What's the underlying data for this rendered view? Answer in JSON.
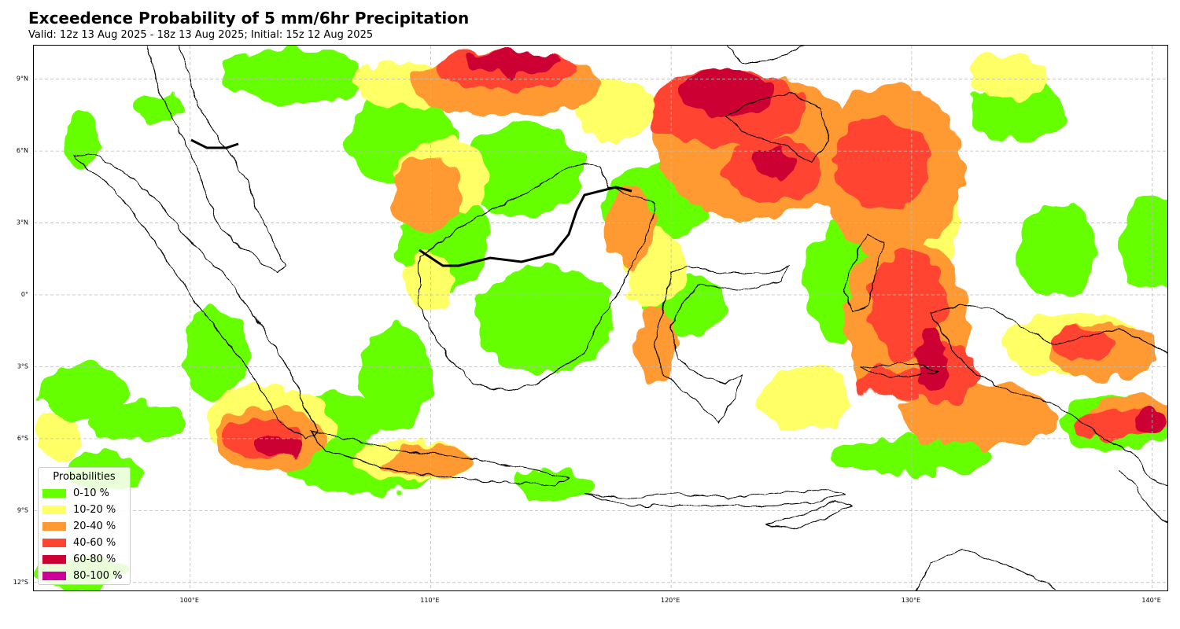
{
  "title": "Exceedence Probability of 5 mm/6hr Precipitation",
  "subtitle": "Valid: 12z 13 Aug 2025 - 18z 13 Aug 2025; Initial: 15z 12 Aug 2025",
  "map": {
    "lon_range": [
      93.5,
      140.7
    ],
    "lat_range": [
      -12.4,
      10.4
    ],
    "lat_ticks": [
      {
        "value": 9,
        "label": "9°N"
      },
      {
        "value": 6,
        "label": "6°N"
      },
      {
        "value": 3,
        "label": "3°N"
      },
      {
        "value": 0,
        "label": "0°"
      },
      {
        "value": -3,
        "label": "3°S"
      },
      {
        "value": -6,
        "label": "6°S"
      },
      {
        "value": -9,
        "label": "9°S"
      },
      {
        "value": -12,
        "label": "12°S"
      }
    ],
    "lon_ticks": [
      {
        "value": 100,
        "label": "100°E"
      },
      {
        "value": 110,
        "label": "110°E"
      },
      {
        "value": 120,
        "label": "120°E"
      },
      {
        "value": 130,
        "label": "130°E"
      },
      {
        "value": 140,
        "label": "140°E"
      }
    ],
    "gridlines": true,
    "coastline_color": "#000000"
  },
  "legend": {
    "title": "Probabilities",
    "placement": "lower-left",
    "items": [
      {
        "label": "0-10 %",
        "color": "#66ff00"
      },
      {
        "label": "10-20 %",
        "color": "#ffff66"
      },
      {
        "label": "20-40 %",
        "color": "#ff9933"
      },
      {
        "label": "40-60 %",
        "color": "#ff4433"
      },
      {
        "label": "60-80 %",
        "color": "#cc0033"
      },
      {
        "label": "80-100 %",
        "color": "#cc0099"
      }
    ]
  }
}
